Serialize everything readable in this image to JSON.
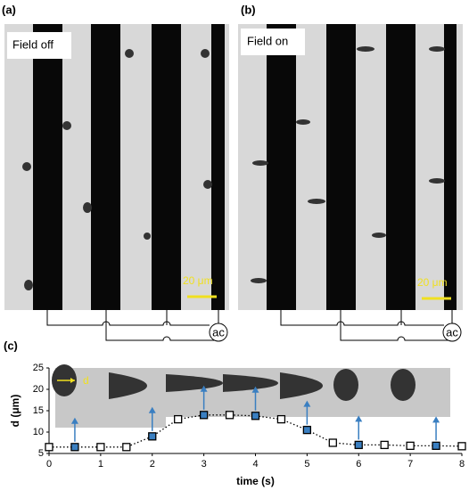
{
  "panels": [
    {
      "label": "(a)",
      "caption": "Field off",
      "scale": "20 μm",
      "source": "ac"
    },
    {
      "label": "(b)",
      "caption": "Field on",
      "scale": "20 μm",
      "source": "ac"
    }
  ],
  "chart_data": {
    "type": "line",
    "panel_label": "(c)",
    "x_label": "time (s)",
    "y_label": "d (μm)",
    "annotation": "d",
    "x": [
      0,
      0.5,
      1,
      1.5,
      2,
      2.5,
      3,
      3.5,
      4,
      4.5,
      5,
      5.5,
      6,
      6.5,
      7,
      7.5,
      8
    ],
    "values": [
      6.5,
      6.5,
      6.5,
      6.5,
      9,
      13,
      14,
      14,
      13.8,
      13,
      10.5,
      7.5,
      7,
      7,
      6.8,
      6.8,
      6.7
    ],
    "color": "#000000",
    "line_style": "dotted",
    "marker_colors": [
      "#ffffff",
      "#3a7fc1",
      "#ffffff",
      "#ffffff",
      "#3a7fc1",
      "#ffffff",
      "#3a7fc1",
      "#ffffff",
      "#3a7fc1",
      "#ffffff",
      "#3a7fc1",
      "#ffffff",
      "#3a7fc1",
      "#ffffff",
      "#ffffff",
      "#3a7fc1",
      "#ffffff"
    ],
    "xlim": [
      0,
      8
    ],
    "xticks": [
      0,
      1,
      2,
      3,
      4,
      5,
      6,
      7,
      8
    ],
    "ylim": [
      5,
      25
    ],
    "yticks": [
      5,
      10,
      15,
      20,
      25
    ]
  }
}
